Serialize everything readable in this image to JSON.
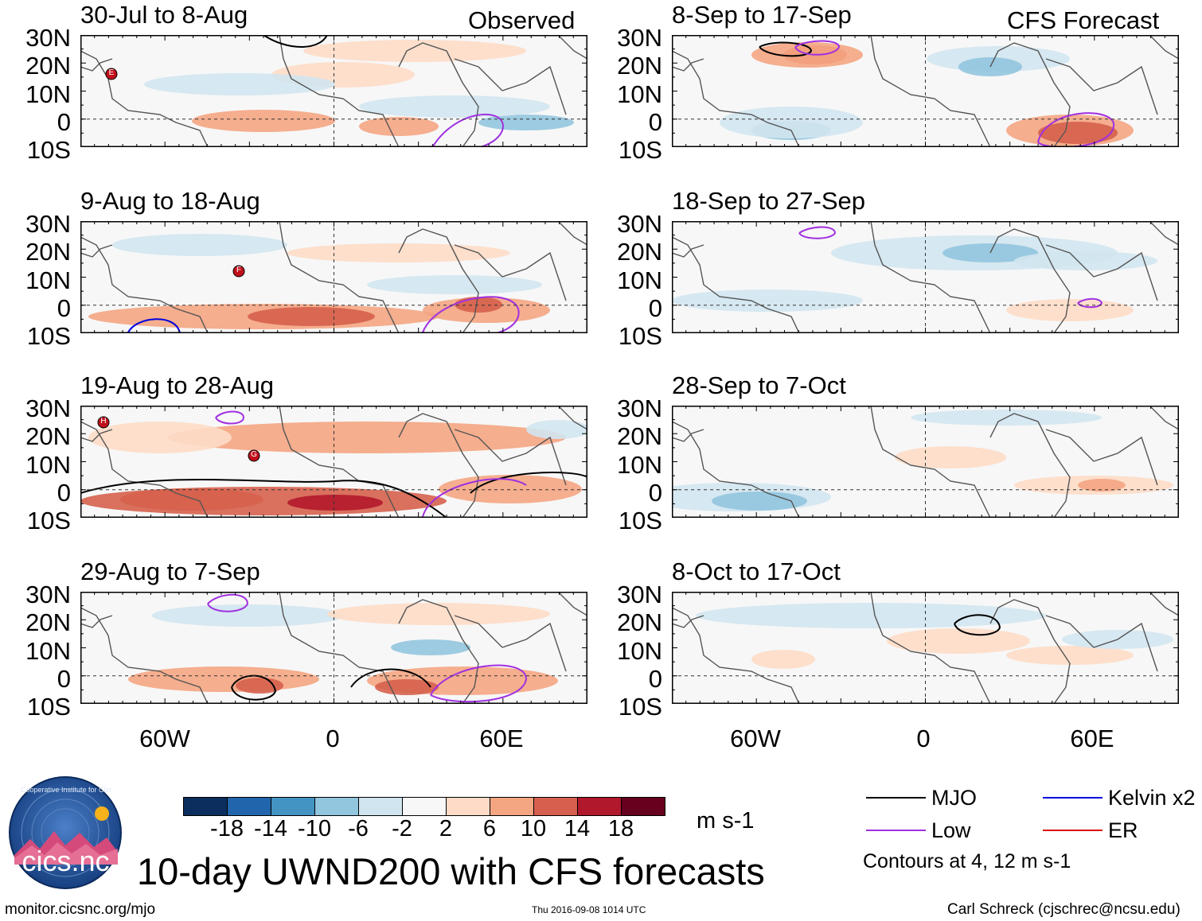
{
  "observed_label": "Observed",
  "forecast_label": "CFS Forecast",
  "lat_labels": [
    "30N",
    "20N",
    "10N",
    "0",
    "10S"
  ],
  "lon_labels": [
    "60W",
    "0",
    "60E"
  ],
  "panels": [
    {
      "title": "30-Jul to 8-Aug",
      "kind": "observed"
    },
    {
      "title": "9-Aug to 18-Aug",
      "kind": "observed"
    },
    {
      "title": "19-Aug to 28-Aug",
      "kind": "observed"
    },
    {
      "title": "29-Aug to 7-Sep",
      "kind": "observed"
    },
    {
      "title": "8-Sep to 17-Sep",
      "kind": "forecast"
    },
    {
      "title": "18-Sep to 27-Sep",
      "kind": "forecast"
    },
    {
      "title": "28-Sep to 7-Oct",
      "kind": "forecast"
    },
    {
      "title": "8-Oct to 17-Oct",
      "kind": "forecast"
    }
  ],
  "storm_markers": [
    {
      "panel": 0,
      "letter": "E"
    },
    {
      "panel": 1,
      "letter": "F"
    },
    {
      "panel": 2,
      "letter": "H"
    },
    {
      "panel": 2,
      "letter": "G"
    }
  ],
  "colorbar": {
    "colors": [
      "#0b2e5e",
      "#2166ac",
      "#4393c3",
      "#92c5de",
      "#d1e5f0",
      "#f7f7f7",
      "#fddbc7",
      "#f4a582",
      "#d6604d",
      "#b2182b",
      "#67001f"
    ],
    "ticks": [
      "-18",
      "-14",
      "-10",
      "-6",
      "-2",
      "2",
      "6",
      "10",
      "14",
      "18"
    ],
    "units": "m s-1"
  },
  "legend": {
    "items": [
      {
        "label": "MJO",
        "color": "#000000"
      },
      {
        "label": "Kelvin x2",
        "color": "#0000dd"
      },
      {
        "label": "Low",
        "color": "#a030e0"
      },
      {
        "label": "ER",
        "color": "#dd1010"
      }
    ],
    "contour_note": "Contours at 4, 12 m s-1"
  },
  "main_title": "10-day UWND200 with CFS forecasts",
  "logo_text": "cics.nc",
  "logo_ring_text": "Cooperative Institute for Climate and Satellites",
  "footer": {
    "website": "monitor.cicsnc.org/mjo",
    "timestamp": "Thu 2016-09-08 1014 UTC",
    "author": "Carl Schreck (cjschrec@ncsu.edu)"
  }
}
